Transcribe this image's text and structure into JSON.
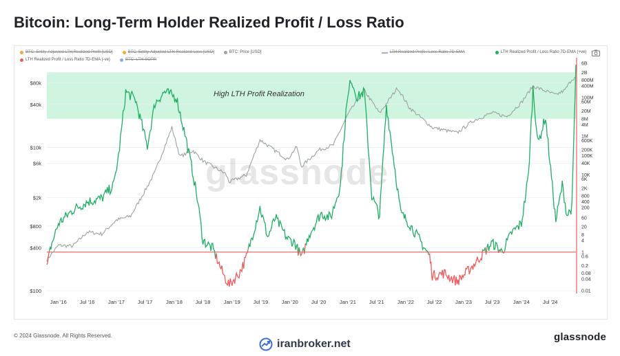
{
  "title": "Bitcoin: Long-Term Holder Realized Profit / Loss Ratio",
  "legend": [
    {
      "label": "BTC: Entity-Adjusted LTH Realized Profit [USD]",
      "color": "#f2a93b",
      "marker": "dot",
      "off": true
    },
    {
      "label": "BTC: Entity-Adjusted LTH Realized Loss [USD]",
      "color": "#f2a93b",
      "marker": "dot",
      "off": true
    },
    {
      "label": "BTC: Price [USD]",
      "color": "#9aa39e",
      "marker": "dot",
      "off": false
    },
    {
      "label": "LTH Realized Profit / Loss Ratio 7D-EMA",
      "color": "#b0a8d8",
      "marker": "dash",
      "off": true
    },
    {
      "label": "LTH Realized Profit / Loss Ratio 7D-EMA (+ve)",
      "color": "#1fae63",
      "marker": "dot",
      "off": false
    },
    {
      "label": "LTH Realized Profit / Loss Ratio 7D-EMA (-ve)",
      "color": "#ef5b5b",
      "marker": "dot",
      "off": false
    },
    {
      "label": "BTC: LTH-SOPR",
      "color": "#8ca8e8",
      "marker": "dot",
      "off": true
    }
  ],
  "annotation": "High LTH Profit Realization",
  "watermark": "glassnode",
  "footer": {
    "copyright": "© 2024 Glassnode. All Rights Reserved.",
    "brand": "glassnode",
    "site": "iranbroker.net"
  },
  "colors": {
    "price": "#9aa39e",
    "ratio_pos": "#1fae63",
    "ratio_neg": "#ef5b5b",
    "band": "#bff0d6",
    "threshold": "#ef5b5b",
    "right_axis": "#ef5b5b"
  },
  "chart_data": {
    "type": "line",
    "x_ticks": [
      "Jan '16",
      "Jul '16",
      "Jan '17",
      "Jul '17",
      "Jan '18",
      "Jul '18",
      "Jan '19",
      "Jul '19",
      "Jan '20",
      "Jul '20",
      "Jan '21",
      "Jul '21",
      "Jan '22",
      "Jul '22",
      "Jan '23",
      "Jul '23",
      "Jan '24",
      "Jul '24"
    ],
    "x_range": [
      "2015-10-20",
      "2024-12-10"
    ],
    "left_axis": {
      "scale": "log",
      "ticks": [
        "$100",
        "$400",
        "$800",
        "$2k",
        "$6k",
        "$10k",
        "$40k",
        "$80k"
      ],
      "range": [
        100,
        150000
      ]
    },
    "right_axis": {
      "scale": "log",
      "ticks": [
        "0.01",
        "0.04",
        "0.08",
        "0.2",
        "0.6",
        "1",
        "4",
        "8",
        "20",
        "60",
        "200",
        "400",
        "800",
        "2K",
        "6K",
        "10K",
        "40K",
        "100K",
        "200K",
        "600K",
        "1M",
        "4M",
        "8M",
        "20M",
        "60M",
        "100M",
        "400M",
        "800M",
        "2B",
        "6B"
      ],
      "range": [
        0.01,
        6000000000
      ]
    },
    "band": {
      "from": 8000000,
      "to": 2000000000,
      "label": "High LTH Profit Realization"
    },
    "threshold": 1,
    "series": [
      {
        "name": "BTC: Price [USD]",
        "axis": "left",
        "x": [
          "2015-10-20",
          "2016-01-01",
          "2016-04-01",
          "2016-07-01",
          "2016-10-01",
          "2017-01-01",
          "2017-04-01",
          "2017-07-01",
          "2017-09-01",
          "2017-12-17",
          "2018-02-06",
          "2018-05-01",
          "2018-07-01",
          "2018-11-20",
          "2018-12-15",
          "2019-04-01",
          "2019-06-26",
          "2019-09-01",
          "2019-12-18",
          "2020-02-13",
          "2020-03-13",
          "2020-07-01",
          "2020-10-01",
          "2021-01-01",
          "2021-04-14",
          "2021-07-20",
          "2021-11-10",
          "2022-01-24",
          "2022-06-18",
          "2022-11-21",
          "2023-03-01",
          "2023-07-01",
          "2023-10-01",
          "2024-01-01",
          "2024-03-14",
          "2024-08-05",
          "2024-10-01",
          "2024-11-12",
          "2024-12-10"
        ],
        "values": [
          270,
          430,
          420,
          660,
          620,
          970,
          1100,
          2500,
          4500,
          19000,
          7500,
          9000,
          6500,
          4300,
          3300,
          4100,
          12800,
          10000,
          6800,
          10300,
          5400,
          9200,
          10800,
          29000,
          63000,
          30000,
          68000,
          36000,
          19000,
          16000,
          23500,
          30500,
          27000,
          42500,
          72000,
          54000,
          63000,
          88000,
          98000
        ]
      },
      {
        "name": "LTH Realized Profit / Loss Ratio 7D-EMA",
        "axis": "right",
        "x": [
          "2015-10-20",
          "2015-11-15",
          "2016-01-01",
          "2016-04-01",
          "2016-07-01",
          "2016-10-01",
          "2016-12-15",
          "2017-01-15",
          "2017-03-01",
          "2017-05-01",
          "2017-07-15",
          "2017-09-01",
          "2017-11-01",
          "2018-01-15",
          "2018-03-15",
          "2018-05-01",
          "2018-06-01",
          "2018-07-01",
          "2018-09-01",
          "2018-11-15",
          "2018-12-15",
          "2019-02-15",
          "2019-04-01",
          "2019-06-26",
          "2019-08-15",
          "2019-10-01",
          "2019-12-15",
          "2020-02-01",
          "2020-03-15",
          "2020-05-01",
          "2020-07-15",
          "2020-09-15",
          "2020-11-15",
          "2020-12-20",
          "2021-01-20",
          "2021-03-01",
          "2021-04-15",
          "2021-06-01",
          "2021-07-20",
          "2021-09-01",
          "2021-10-20",
          "2021-12-01",
          "2022-01-24",
          "2022-04-01",
          "2022-06-01",
          "2022-06-18",
          "2022-09-01",
          "2022-11-21",
          "2023-01-15",
          "2023-03-01",
          "2023-05-01",
          "2023-07-01",
          "2023-09-01",
          "2023-11-01",
          "2024-01-01",
          "2024-02-15",
          "2024-03-14",
          "2024-04-15",
          "2024-06-01",
          "2024-08-05",
          "2024-09-15",
          "2024-10-15",
          "2024-11-15",
          "2024-12-10"
        ],
        "values": [
          0.15,
          2,
          30,
          150,
          400,
          600,
          3000,
          100000,
          200000000,
          80000000,
          300000,
          50000000,
          200000000,
          100000000,
          800000,
          10000,
          300,
          4,
          1.5,
          0.05,
          0.02,
          0.08,
          0.5,
          200,
          6,
          60,
          5,
          3,
          0.5,
          8,
          100,
          60,
          3000,
          20000000,
          1000000000,
          100000000,
          200000000,
          800,
          80,
          40000000,
          40000,
          100,
          30,
          4,
          0.6,
          0.06,
          0.08,
          0.03,
          0.08,
          0.2,
          0.8,
          3,
          1,
          10,
          30,
          10000,
          300000000,
          400000,
          10000000,
          40,
          3000,
          80,
          200,
          5000000000
        ]
      }
    ]
  }
}
